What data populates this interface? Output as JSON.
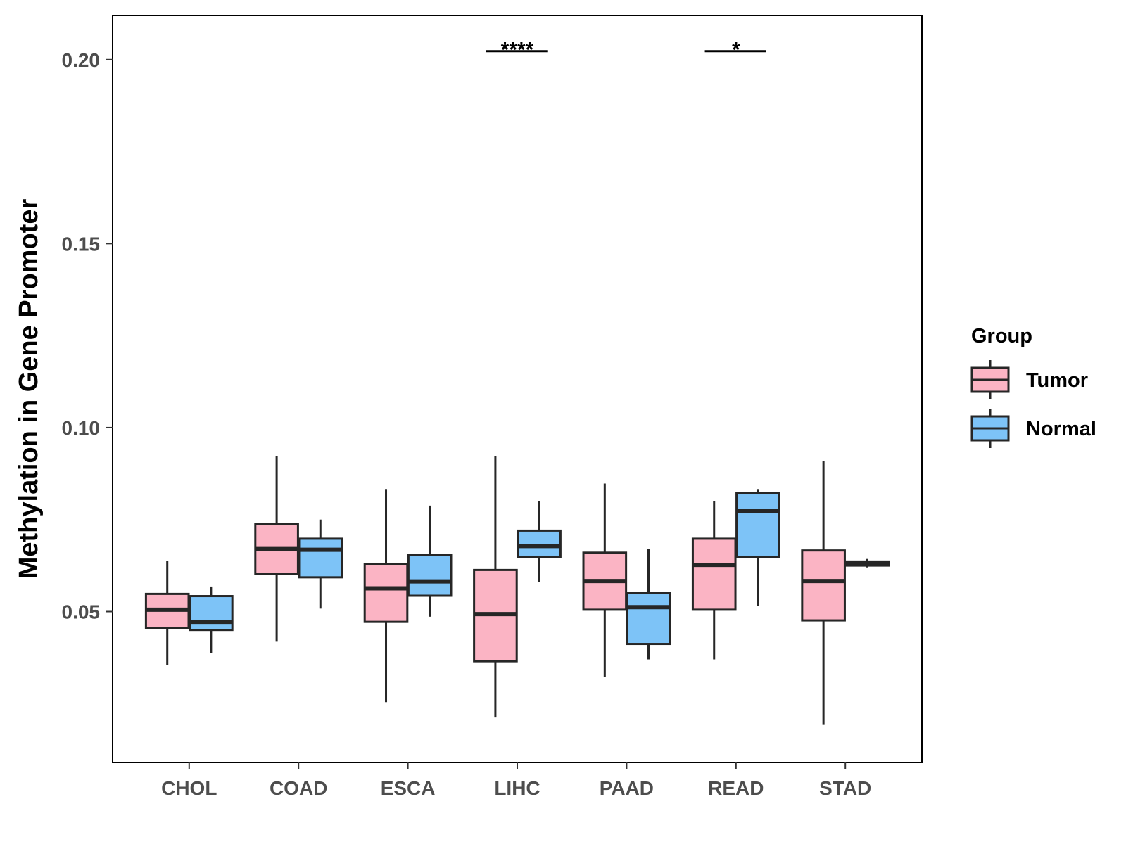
{
  "chart_data": {
    "type": "boxplot",
    "title": "",
    "xlabel": "",
    "ylabel": "Methylation in Gene Promoter",
    "ylim": [
      0.009,
      0.212
    ],
    "yticks": [
      0.05,
      0.1,
      0.15,
      0.2
    ],
    "ytick_labels": [
      "0.05",
      "0.10",
      "0.15",
      "0.20"
    ],
    "grid": false,
    "legend_position": "right",
    "categories": [
      "CHOL",
      "COAD",
      "ESCA",
      "LIHC",
      "PAAD",
      "READ",
      "STAD"
    ],
    "legend": {
      "title": "Group",
      "entries": [
        {
          "name": "Tumor",
          "color": "#FBB4C4"
        },
        {
          "name": "Normal",
          "color": "#7DC3F7"
        }
      ]
    },
    "series": [
      {
        "name": "Tumor",
        "color": "#FBB4C4",
        "boxes": [
          {
            "min": 0.0355,
            "q1": 0.0455,
            "median": 0.0505,
            "q3": 0.0548,
            "max": 0.0638
          },
          {
            "min": 0.0418,
            "q1": 0.0603,
            "median": 0.067,
            "q3": 0.0738,
            "max": 0.0923
          },
          {
            "min": 0.0254,
            "q1": 0.0472,
            "median": 0.0563,
            "q3": 0.063,
            "max": 0.0833
          },
          {
            "min": 0.0212,
            "q1": 0.0365,
            "median": 0.0493,
            "q3": 0.0613,
            "max": 0.0923
          },
          {
            "min": 0.0322,
            "q1": 0.0505,
            "median": 0.0583,
            "q3": 0.066,
            "max": 0.0848
          },
          {
            "min": 0.037,
            "q1": 0.0505,
            "median": 0.0627,
            "q3": 0.0698,
            "max": 0.08
          },
          {
            "min": 0.0192,
            "q1": 0.0476,
            "median": 0.0583,
            "q3": 0.0666,
            "max": 0.091
          }
        ]
      },
      {
        "name": "Normal",
        "color": "#7DC3F7",
        "boxes": [
          {
            "min": 0.0388,
            "q1": 0.045,
            "median": 0.0472,
            "q3": 0.0542,
            "max": 0.0568
          },
          {
            "min": 0.0508,
            "q1": 0.0593,
            "median": 0.0668,
            "q3": 0.0698,
            "max": 0.075
          },
          {
            "min": 0.0486,
            "q1": 0.0543,
            "median": 0.0582,
            "q3": 0.0653,
            "max": 0.0788
          },
          {
            "min": 0.058,
            "q1": 0.0648,
            "median": 0.0678,
            "q3": 0.072,
            "max": 0.08
          },
          {
            "min": 0.037,
            "q1": 0.0412,
            "median": 0.0512,
            "q3": 0.055,
            "max": 0.067
          },
          {
            "min": 0.0515,
            "q1": 0.0648,
            "median": 0.0773,
            "q3": 0.0823,
            "max": 0.0833
          },
          {
            "min": 0.062,
            "q1": 0.0625,
            "median": 0.063,
            "q3": 0.0636,
            "max": 0.0643
          }
        ]
      }
    ],
    "significance": [
      {
        "category": "LIHC",
        "label": "****",
        "y": 0.2023
      },
      {
        "category": "READ",
        "label": "*",
        "y": 0.2023
      }
    ]
  }
}
